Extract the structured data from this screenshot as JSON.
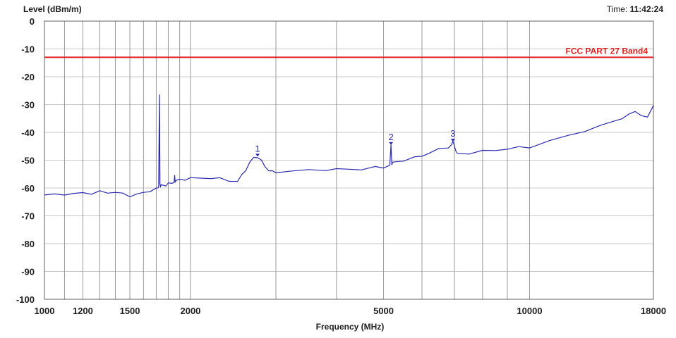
{
  "chart_data": {
    "type": "line",
    "title": "",
    "ylabel": "Level (dBm/m)",
    "xlabel": "Frequency (MHz)",
    "time_label": "Time:",
    "time_value": "11:42:24",
    "x_scale": "log",
    "xlim": [
      1000,
      18000
    ],
    "ylim": [
      -100,
      0
    ],
    "grid": true,
    "y_ticks": [
      0,
      -10,
      -20,
      -30,
      -40,
      -50,
      -60,
      -70,
      -80,
      -90,
      -100
    ],
    "x_tick_labels": [
      {
        "value": 1000,
        "label": "1000"
      },
      {
        "value": 1200,
        "label": "1200"
      },
      {
        "value": 1500,
        "label": "1500"
      },
      {
        "value": 2000,
        "label": "2000"
      },
      {
        "value": 5000,
        "label": "5000"
      },
      {
        "value": 10000,
        "label": "10000"
      },
      {
        "value": 18000,
        "label": "18000"
      }
    ],
    "x_gridlines": [
      1000,
      1100,
      1200,
      1300,
      1400,
      1500,
      1600,
      1700,
      1800,
      1900,
      2000,
      3000,
      4000,
      5000,
      6000,
      7000,
      8000,
      9000,
      10000,
      18000
    ],
    "limit_line": {
      "label": "FCC PART 27 Band4",
      "value": -13,
      "color": "#e02020"
    },
    "series": [
      {
        "color": "#2a2ab0",
        "x": [
          1000,
          1050,
          1100,
          1150,
          1200,
          1250,
          1300,
          1350,
          1400,
          1450,
          1500,
          1550,
          1600,
          1650,
          1700,
          1715,
          1720,
          1723,
          1726,
          1728,
          1730,
          1735,
          1740,
          1760,
          1780,
          1800,
          1830,
          1850,
          1855,
          1860,
          1870,
          1900,
          1950,
          2000,
          2100,
          2200,
          2300,
          2400,
          2500,
          2550,
          2600,
          2650,
          2700,
          2750,
          2800,
          2850,
          2900,
          2950,
          3000,
          3200,
          3500,
          3800,
          4000,
          4200,
          4500,
          4800,
          5000,
          5150,
          5180,
          5200,
          5220,
          5300,
          5500,
          5800,
          6000,
          6200,
          6500,
          6800,
          6900,
          6950,
          7000,
          7050,
          7100,
          7500,
          8000,
          8500,
          9000,
          9500,
          10000,
          11000,
          12000,
          13000,
          14000,
          15000,
          15500,
          16000,
          16500,
          17000,
          17500,
          18000
        ],
        "y": [
          -62.5,
          -62.3,
          -61.8,
          -61.9,
          -61.5,
          -61.8,
          -61.5,
          -61.9,
          -61.7,
          -62.5,
          -62.9,
          -62.2,
          -61.6,
          -60.6,
          -60.1,
          -59.7,
          -59.0,
          -43.0,
          -26.5,
          -40.0,
          -59.0,
          -59.3,
          -59.0,
          -58.9,
          -58.6,
          -58.3,
          -58.0,
          -57.8,
          -56.0,
          -57.8,
          -57.6,
          -57.3,
          -56.8,
          -56.5,
          -56.2,
          -56.0,
          -56.5,
          -57.2,
          -57.6,
          -55.8,
          -53.6,
          -51.2,
          -49.3,
          -48.7,
          -50.2,
          -52.0,
          -53.3,
          -54.0,
          -54.1,
          -54.1,
          -53.9,
          -53.6,
          -53.6,
          -53.4,
          -53.1,
          -52.5,
          -52.3,
          -51.4,
          -44.5,
          -51.2,
          -51.0,
          -51.0,
          -50.2,
          -49.4,
          -48.6,
          -47.2,
          -46.0,
          -45.0,
          -44.2,
          -43.3,
          -44.5,
          -47.2,
          -47.9,
          -47.7,
          -47.1,
          -46.4,
          -45.8,
          -45.3,
          -44.9,
          -42.8,
          -41.2,
          -39.3,
          -38.0,
          -36.1,
          -35.1,
          -34.1,
          -32.2,
          -33.8,
          -34.6,
          -29.6
        ]
      }
    ],
    "markers": [
      {
        "label": "1",
        "x": 2750,
        "y": -48.7
      },
      {
        "label": "2",
        "x": 5180,
        "y": -44.5
      },
      {
        "label": "3",
        "x": 6950,
        "y": -43.3
      }
    ]
  }
}
